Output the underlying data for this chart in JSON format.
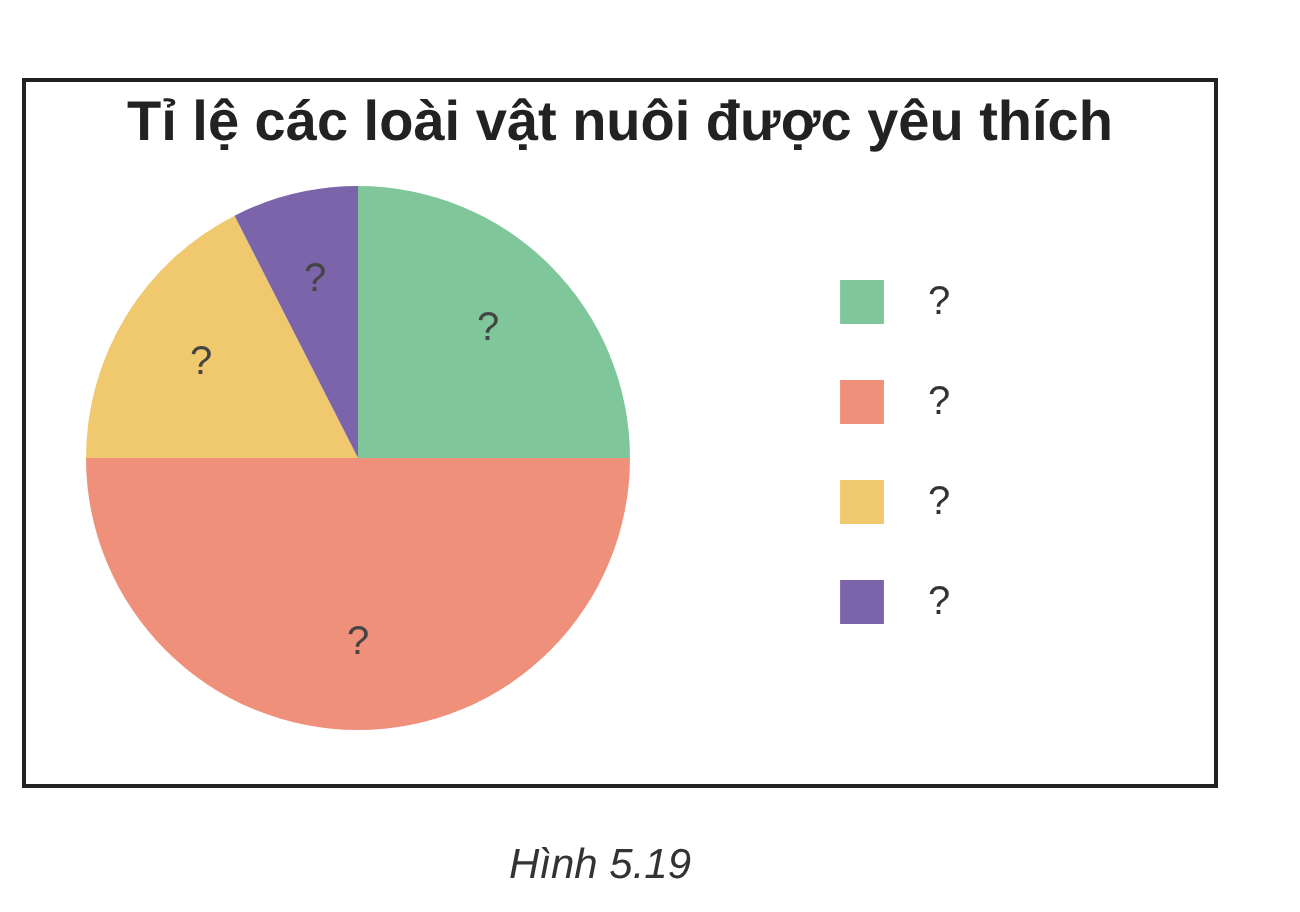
{
  "chart_data": {
    "type": "pie",
    "title": "Tỉ lệ các loài vật nuôi được yêu thích",
    "categories": [
      "?",
      "?",
      "?",
      "?"
    ],
    "values": [
      25,
      50,
      17.5,
      7.5
    ],
    "colors": [
      "#7fc69a",
      "#ef907a",
      "#f0c96f",
      "#7b64aa"
    ],
    "legend": "right",
    "annotations": [
      "Hình 5.19"
    ]
  }
}
